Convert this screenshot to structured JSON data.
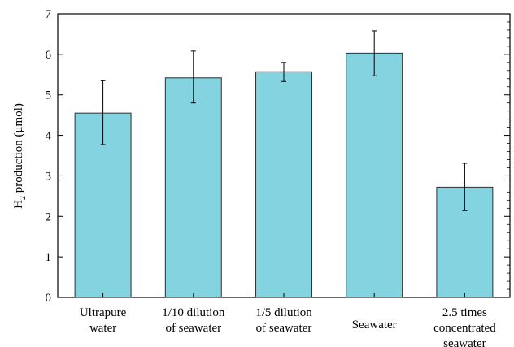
{
  "chart_data": {
    "type": "bar",
    "title": "",
    "ylabel": "H₂ production (μmol)",
    "ylabel_main": "H",
    "ylabel_sub": "2",
    "ylabel_rest": " production (μmol)",
    "xlabel": "",
    "ylim": [
      0,
      7
    ],
    "yticks": [
      0,
      1,
      2,
      3,
      4,
      5,
      6,
      7
    ],
    "categories": [
      [
        "Ultrapure",
        "water"
      ],
      [
        "1/10 dilution",
        "of seawater"
      ],
      [
        "1/5 dilution",
        "of seawater"
      ],
      [
        "Seawater"
      ],
      [
        "2.5 times",
        "concentrated",
        "seawater"
      ]
    ],
    "values": [
      4.55,
      5.42,
      5.57,
      6.03,
      2.72
    ],
    "error_low": [
      3.77,
      4.8,
      5.33,
      5.47,
      2.14
    ],
    "error_high": [
      5.35,
      6.08,
      5.8,
      6.58,
      3.31
    ],
    "bar_color": "#84d3e0",
    "bar_edge_color": "#2e2e2e",
    "grid": false
  }
}
